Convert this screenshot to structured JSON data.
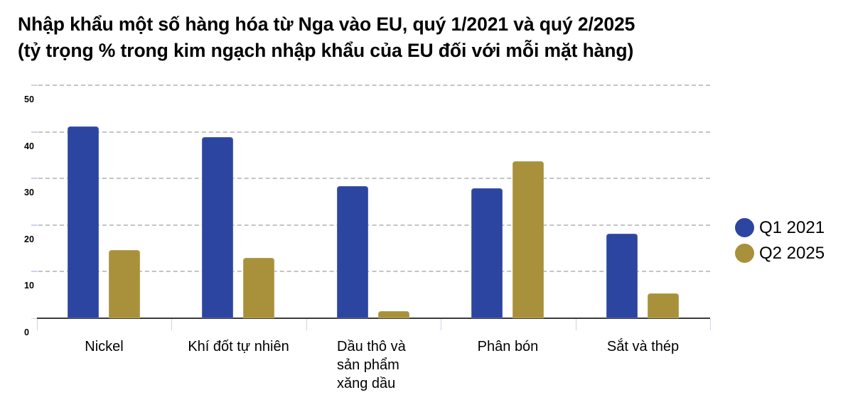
{
  "chart_data": {
    "type": "bar",
    "title": "Nhập khẩu một số hàng hóa từ Nga vào EU, quý 1/2021 và quý 2/2025",
    "subtitle": "(tỷ trọng % trong kim ngạch nhập khẩu của EU đối với mỗi mặt hàng)",
    "xlabel": "",
    "ylabel": "",
    "ylim": [
      0,
      50
    ],
    "yticks": [
      "0",
      "10",
      "20",
      "30",
      "40",
      "50"
    ],
    "grid": true,
    "legend_position": "right",
    "categories": [
      "Nickel",
      "Khí đốt tự nhiên",
      "Dầu thô và sản phẩm xăng dầu",
      "Phân bón",
      "Sắt và thép"
    ],
    "category_label_lines": [
      [
        "Nickel"
      ],
      [
        "Khí đốt tự nhiên"
      ],
      [
        "Dầu thô và",
        "sản phẩm",
        "xăng dầu"
      ],
      [
        "Phân bón"
      ],
      [
        "Sắt và thép"
      ]
    ],
    "series": [
      {
        "name": "Q1 2021",
        "color": "#2c45a0",
        "values": [
          41.2,
          38.9,
          28.4,
          27.9,
          18.1
        ]
      },
      {
        "name": "Q2 2025",
        "color": "#a8913a",
        "values": [
          14.6,
          13.0,
          1.6,
          33.7,
          5.3
        ]
      }
    ]
  }
}
